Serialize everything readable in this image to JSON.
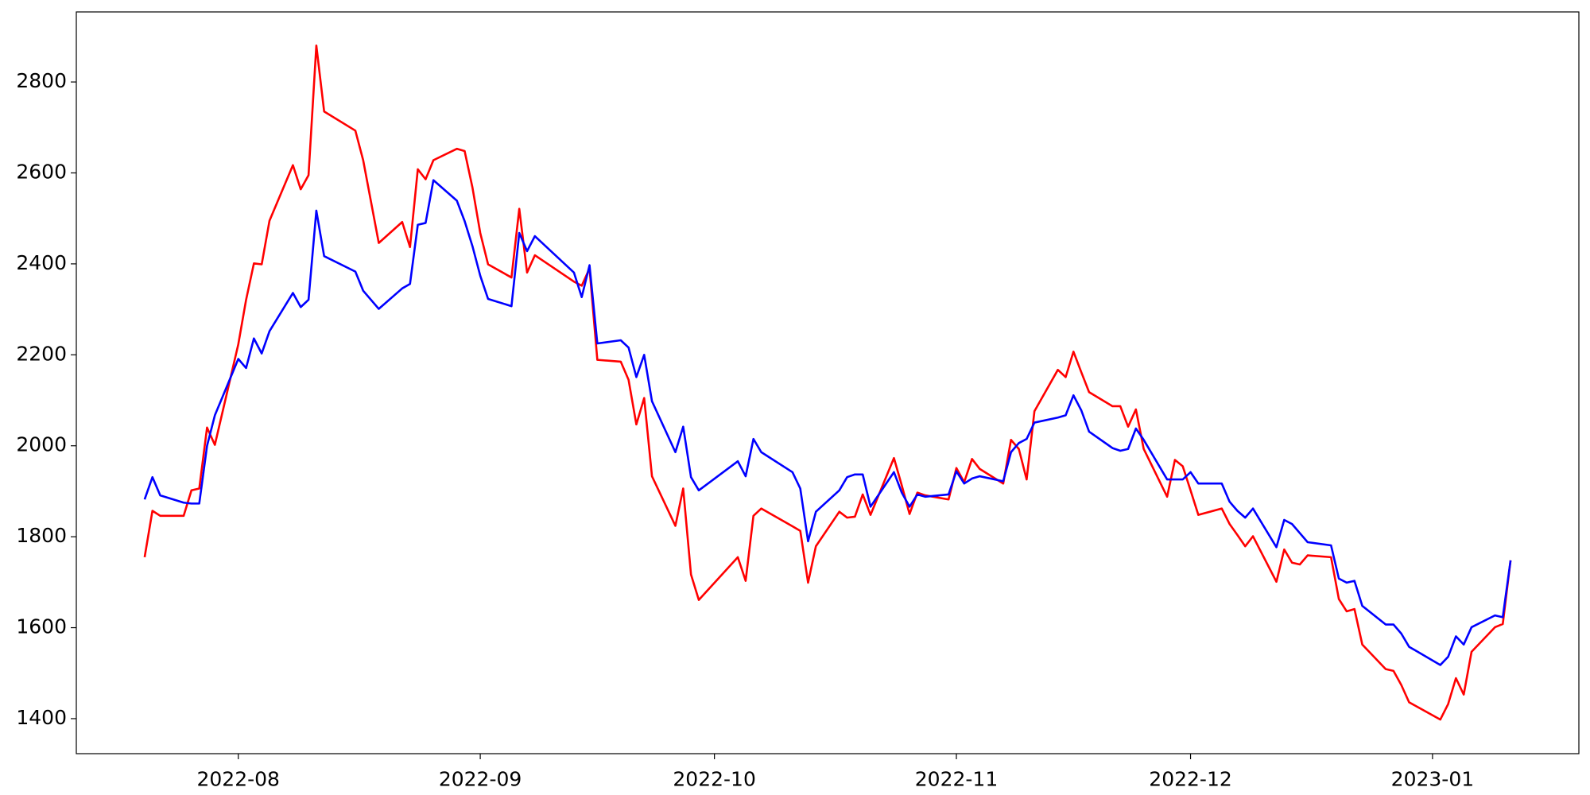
{
  "chart_data": {
    "type": "line",
    "x": [
      19193,
      19194,
      19195,
      19198,
      19199,
      19200,
      19201,
      19202,
      19205,
      19206,
      19207,
      19208,
      19209,
      19212,
      19213,
      19214,
      19215,
      19216,
      19220,
      19221,
      19223,
      19226,
      19227,
      19228,
      19229,
      19230,
      19233,
      19234,
      19235,
      19236,
      19237,
      19240,
      19241,
      19242,
      19243,
      19248,
      19249,
      19250,
      19251,
      19254,
      19255,
      19256,
      19257,
      19258,
      19261,
      19262,
      19263,
      19264,
      19269,
      19270,
      19271,
      19272,
      19276,
      19277,
      19278,
      19279,
      19282,
      19283,
      19284,
      19285,
      19286,
      19289,
      19290,
      19291,
      19292,
      19293,
      19296,
      19297,
      19298,
      19299,
      19300,
      19303,
      19304,
      19305,
      19306,
      19307,
      19310,
      19311,
      19312,
      19313,
      19314,
      19317,
      19318,
      19319,
      19320,
      19321,
      19324,
      19325,
      19326,
      19327,
      19328,
      19331,
      19332,
      19333,
      19334,
      19335,
      19338,
      19339,
      19340,
      19341,
      19342,
      19345,
      19346,
      19347,
      19348,
      19349,
      19352,
      19353,
      19354,
      19355,
      19359,
      19360,
      19361,
      19362,
      19363,
      19366,
      19367,
      19368
    ],
    "series": [
      {
        "color": "red",
        "values": [
          1755,
          1857,
          1846,
          1846,
          1902,
          1906,
          2040,
          2002,
          2223,
          2321,
          2401,
          2399,
          2495,
          2617,
          2564,
          2595,
          2880,
          2735,
          2693,
          2628,
          2446,
          2492,
          2437,
          2608,
          2586,
          2628,
          2653,
          2648,
          2568,
          2468,
          2399,
          2370,
          2521,
          2381,
          2419,
          2361,
          2352,
          2390,
          2189,
          2185,
          2145,
          2047,
          2105,
          1933,
          1824,
          1906,
          1717,
          1661,
          1755,
          1703,
          1846,
          1862,
          1823,
          1813,
          1699,
          1779,
          1855,
          1842,
          1844,
          1893,
          1848,
          1973,
          1913,
          1850,
          1897,
          1891,
          1882,
          1951,
          1920,
          1971,
          1949,
          1917,
          2013,
          1993,
          1926,
          2076,
          2167,
          2151,
          2207,
          2162,
          2118,
          2087,
          2087,
          2042,
          2080,
          1993,
          1888,
          1969,
          1955,
          1902,
          1848,
          1862,
          1828,
          1804,
          1779,
          1801,
          1701,
          1772,
          1743,
          1739,
          1759,
          1755,
          1663,
          1636,
          1641,
          1563,
          1509,
          1505,
          1474,
          1436,
          1398,
          1432,
          1489,
          1453,
          1547,
          1601,
          1608,
          1748
        ]
      },
      {
        "color": "blue",
        "values": [
          1882,
          1931,
          1891,
          1875,
          1873,
          1873,
          2000,
          2067,
          2191,
          2171,
          2236,
          2203,
          2252,
          2336,
          2305,
          2321,
          2517,
          2417,
          2383,
          2341,
          2301,
          2346,
          2356,
          2486,
          2490,
          2584,
          2539,
          2494,
          2439,
          2374,
          2323,
          2307,
          2468,
          2428,
          2461,
          2381,
          2327,
          2397,
          2225,
          2232,
          2216,
          2151,
          2200,
          2098,
          1986,
          2042,
          1931,
          1902,
          1966,
          1933,
          2015,
          1986,
          1942,
          1906,
          1790,
          1855,
          1902,
          1931,
          1937,
          1937,
          1866,
          1942,
          1897,
          1866,
          1893,
          1888,
          1893,
          1944,
          1917,
          1928,
          1933,
          1922,
          1986,
          2006,
          2015,
          2051,
          2062,
          2067,
          2111,
          2078,
          2031,
          1995,
          1989,
          1993,
          2038,
          2013,
          1926,
          1926,
          1926,
          1942,
          1917,
          1917,
          1877,
          1857,
          1842,
          1862,
          1777,
          1837,
          1828,
          1808,
          1788,
          1781,
          1708,
          1699,
          1703,
          1648,
          1607,
          1607,
          1587,
          1558,
          1518,
          1536,
          1581,
          1563,
          1601,
          1627,
          1623,
          1748
        ]
      }
    ],
    "xlim": [
      19184.25,
      19376.75
    ],
    "xticks": [
      {
        "value": 19205,
        "label": "2022-08"
      },
      {
        "value": 19236,
        "label": "2022-09"
      },
      {
        "value": 19266,
        "label": "2022-10"
      },
      {
        "value": 19297,
        "label": "2022-11"
      },
      {
        "value": 19327,
        "label": "2022-12"
      },
      {
        "value": 19358,
        "label": "2023-01"
      }
    ],
    "ylim": [
      1323,
      2954
    ],
    "yticks": [
      1400,
      1600,
      1800,
      2000,
      2200,
      2400,
      2600,
      2800
    ],
    "grid": false
  }
}
